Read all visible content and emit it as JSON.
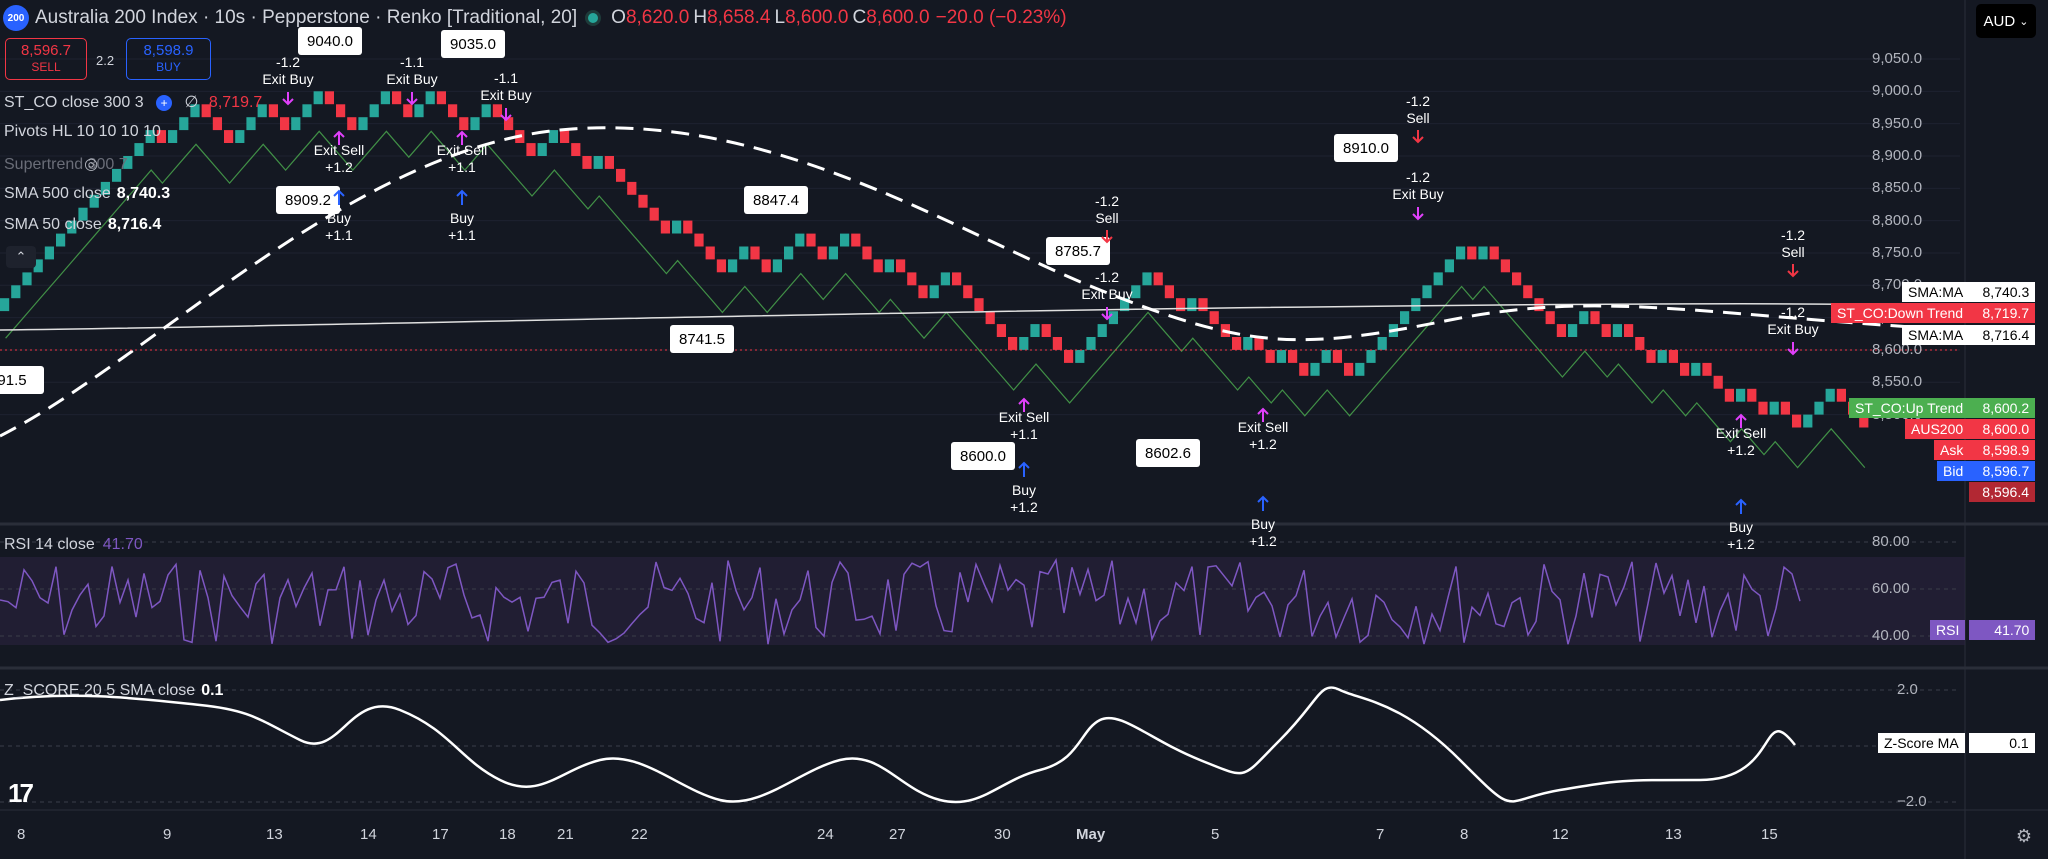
{
  "header": {
    "logo": "200",
    "title": "Australia 200 Index · 10s · Pepperstone · Renko [Traditional, 20]",
    "o_label": "O",
    "o": "8,620.0",
    "h_label": "H",
    "h": "8,658.4",
    "l_label": "L",
    "l": "8,600.0",
    "c_label": "C",
    "c": "8,600.0",
    "change": "−20.0 (−0.23%)"
  },
  "trade": {
    "sell_price": "8,596.7",
    "sell_label": "SELL",
    "spread": "2.2",
    "buy_price": "8,598.9",
    "buy_label": "BUY"
  },
  "currency": "AUD",
  "legend": {
    "st_co": "ST_CO close 300 3",
    "st_co_sym": "∅",
    "st_co_val": "8,719.7",
    "pivots": "Pivots HL 10 10 10 10",
    "supertrend": "Supertrend 300 7",
    "sma500": "SMA 500 close",
    "sma500_val": "8,740.3",
    "sma50": "SMA 50 close",
    "sma50_val": "8,716.4",
    "rsi": "RSI 14 close",
    "rsi_val": "41.70",
    "zscore": "Z_SCORE 20 5 SMA close",
    "zscore_val": "0.1"
  },
  "price_axis": [
    "9,050.0",
    "9,000.0",
    "8,950.0",
    "8,900.0",
    "8,850.0",
    "8,800.0",
    "8,750.0",
    "8,700.0",
    "8,650.0",
    "8,600.0",
    "8,550.0",
    "8,500.0"
  ],
  "rsi_axis": [
    "80.00",
    "60.00",
    "40.00"
  ],
  "z_axis": [
    "2.0",
    "−2.0"
  ],
  "price_tags": [
    {
      "name": "SMA:MA",
      "value": "8,740.3",
      "color": "#ffffff",
      "text": "#000000"
    },
    {
      "name": "ST_CO:Down Trend",
      "value": "8,719.7",
      "color": "#f23645",
      "text": "#ffffff"
    },
    {
      "name": "SMA:MA",
      "value": "8,716.4",
      "color": "#ffffff",
      "text": "#000000"
    },
    {
      "name": "ST_CO:Up Trend",
      "value": "8,600.2",
      "color": "#4caf50",
      "text": "#ffffff"
    },
    {
      "name": "AUS200",
      "value": "8,600.0",
      "color": "#f23645",
      "text": "#ffffff"
    },
    {
      "name": "Ask",
      "value": "8,598.9",
      "color": "#f23645",
      "text": "#ffffff"
    },
    {
      "name": "Bid",
      "value": "8,596.7",
      "color": "#2962ff",
      "text": "#ffffff"
    },
    {
      "name": "",
      "value": "8,596.4",
      "color": "#b22833",
      "text": "#ffffff"
    }
  ],
  "rsi_tag": {
    "name": "RSI",
    "value": "41.70"
  },
  "z_tag": {
    "name": "Z-Score MA",
    "value": "0.1"
  },
  "x_axis": [
    "8",
    "9",
    "13",
    "14",
    "17",
    "18",
    "21",
    "22",
    "24",
    "27",
    "30",
    "May",
    "5",
    "7",
    "8",
    "12",
    "13",
    "15"
  ],
  "pivot_labels": [
    "9040.0",
    "9035.0",
    "8909.2",
    "8847.4",
    "8741.5",
    "8785.7",
    "8600.0",
    "8602.6",
    "8910.0",
    "91.5"
  ],
  "signals": {
    "sell": "Sell",
    "buy": "Buy",
    "exit_buy": "Exit Buy",
    "exit_sell": "Exit Sell",
    "m12": "-1.2",
    "m11": "-1.1",
    "p12": "+1.2",
    "p11": "+1.1"
  },
  "colors": {
    "up": "#26a69a",
    "down": "#f23645",
    "sell_arrow": "#f23645",
    "buy_arrow": "#2962ff",
    "exit": "#e040fb",
    "rsi": "#7e57c2"
  },
  "settings_icon": "gear-icon"
}
